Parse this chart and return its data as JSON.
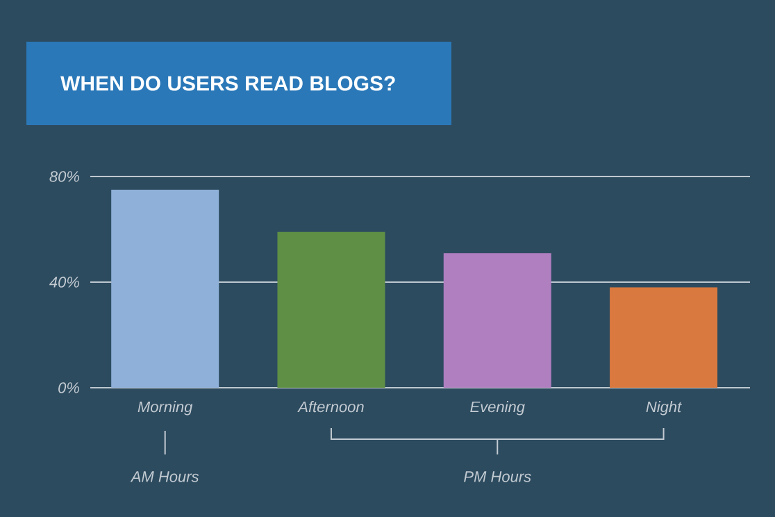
{
  "chart_data": {
    "type": "bar",
    "title": "WHEN DO USERS READ BLOGS?",
    "categories": [
      "Morning",
      "Afternoon",
      "Evening",
      "Night"
    ],
    "values": [
      75,
      59,
      51,
      38
    ],
    "colors": [
      "#8fb0d8",
      "#5e8f45",
      "#b07fc0",
      "#d9793f"
    ],
    "ylim": [
      0,
      80
    ],
    "yticks": [
      {
        "value": 0,
        "label": "0%"
      },
      {
        "value": 40,
        "label": "40%"
      },
      {
        "value": 80,
        "label": "80%"
      }
    ],
    "grid": "y",
    "annotations": [
      "AM Hours",
      "PM Hours"
    ]
  }
}
